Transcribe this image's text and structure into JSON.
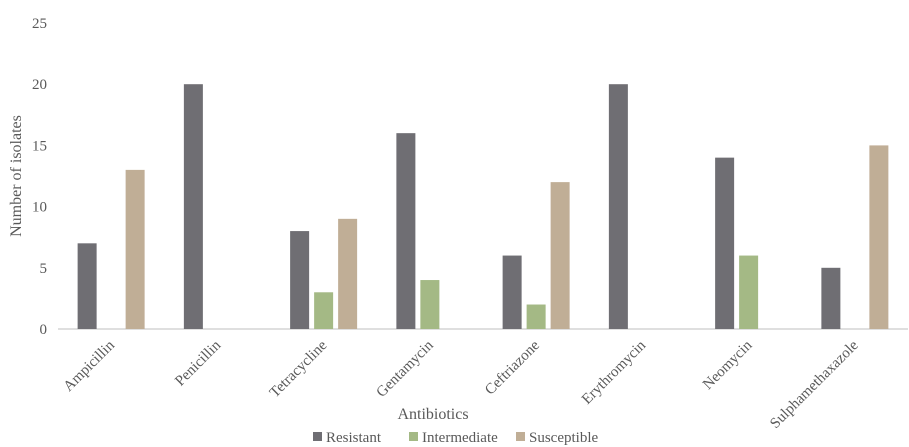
{
  "chart_data": {
    "type": "bar",
    "xlabel": "Antibiotics",
    "ylabel": "Number of isolates",
    "ylim": [
      0,
      25
    ],
    "yticks": [
      0,
      5,
      10,
      15,
      20,
      25
    ],
    "grid": false,
    "legend_position": "bottom",
    "categories": [
      "Ampicillin",
      "Penicillin",
      "Tetracycline",
      "Gentamycin",
      "Ceftriazone",
      "Erythromycin",
      "Neomycin",
      "Sulphamethaxazole"
    ],
    "series": [
      {
        "name": "Resistant",
        "color": "#6f6e73",
        "values": [
          7,
          20,
          8,
          16,
          6,
          20,
          14,
          5
        ]
      },
      {
        "name": "Intermediate",
        "color": "#a4b985",
        "values": [
          0,
          0,
          3,
          4,
          2,
          0,
          6,
          0
        ]
      },
      {
        "name": "Susceptible",
        "color": "#c0ae96",
        "values": [
          13,
          0,
          9,
          0,
          12,
          0,
          0,
          15
        ]
      }
    ]
  }
}
